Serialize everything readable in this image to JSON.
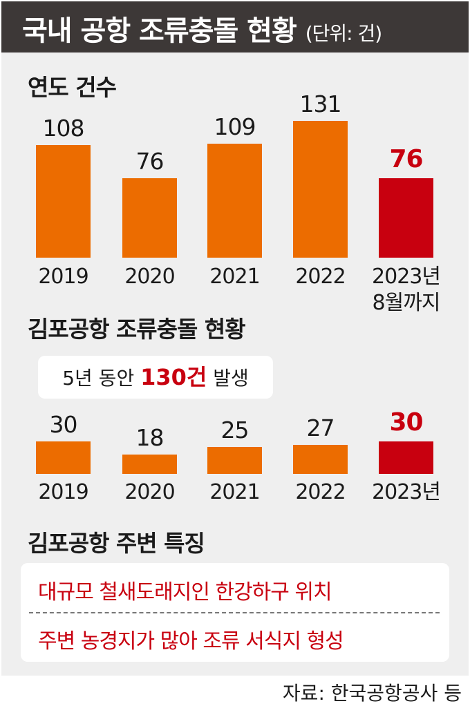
{
  "header": {
    "title": "국내 공항 조류충돌 현황",
    "unit": "(단위: 건)"
  },
  "chart_data": [
    {
      "type": "bar",
      "title": "연도 건수",
      "categories": [
        "2019",
        "2020",
        "2021",
        "2022",
        "2023년\n8월까지"
      ],
      "values": [
        108,
        76,
        109,
        131,
        76
      ],
      "highlight_index": 4,
      "ylim": [
        0,
        131
      ]
    },
    {
      "type": "bar",
      "title": "김포공항 조류충돌 현황",
      "annotation": {
        "pre": "5년 동안 ",
        "em": "130건",
        "post": " 발생"
      },
      "categories": [
        "2019",
        "2020",
        "2021",
        "2022",
        "2023년"
      ],
      "values": [
        30,
        18,
        25,
        27,
        30
      ],
      "highlight_index": 4,
      "ylim": [
        0,
        30
      ]
    }
  ],
  "features": {
    "title": "김포공항 주변 특징",
    "items": [
      "대규모 철새도래지인 한강하구 위치",
      "주변 농경지가 많아 조류 서식지 형성"
    ]
  },
  "source": "자료: 한국공항공사 등",
  "colors": {
    "bar": "#ec6c00",
    "highlight": "#c8000f",
    "header": "#3d3837"
  }
}
